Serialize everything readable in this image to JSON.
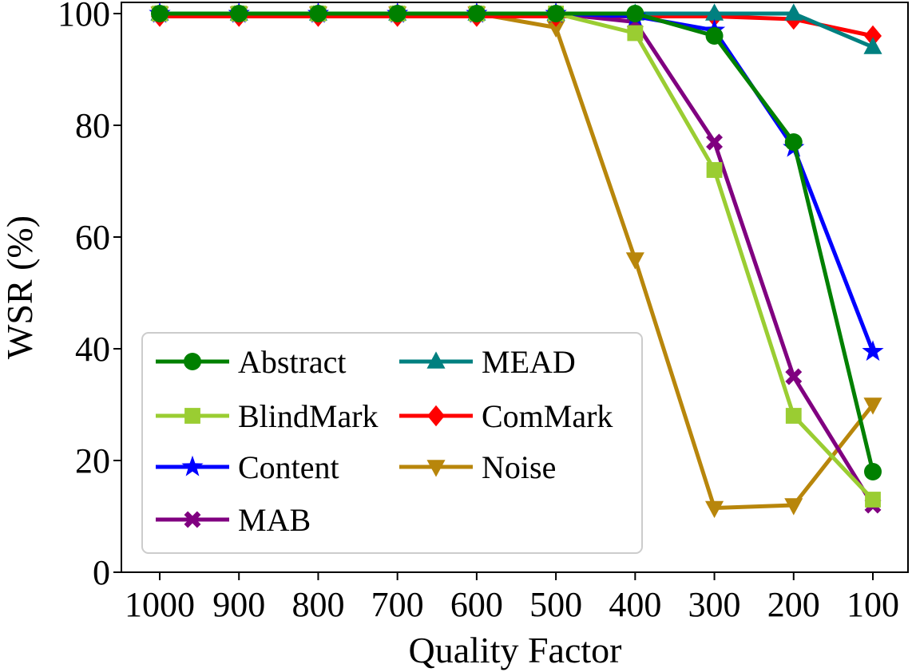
{
  "chart_data": {
    "type": "line",
    "title": "",
    "xlabel": "Quality Factor",
    "ylabel": "WSR (%)",
    "categories": [
      "1000",
      "900",
      "800",
      "700",
      "600",
      "500",
      "400",
      "300",
      "200",
      "100"
    ],
    "yticks": [
      "0",
      "20",
      "40",
      "60",
      "80",
      "100"
    ],
    "ylim": [
      0,
      102
    ],
    "grid": false,
    "legend_position": "lower-left",
    "series": [
      {
        "name": "Abstract",
        "color": "#008000",
        "marker": "circle",
        "values": [
          100,
          100,
          100,
          100,
          100,
          100,
          100,
          96,
          77,
          18
        ]
      },
      {
        "name": "BlindMark",
        "color": "#9acd32",
        "marker": "square",
        "values": [
          100,
          100,
          100,
          100,
          100,
          100,
          96.5,
          72,
          28,
          13
        ]
      },
      {
        "name": "Content",
        "color": "#0000ff",
        "marker": "star",
        "values": [
          100,
          100,
          100,
          100,
          100,
          100,
          99.5,
          97,
          76,
          39.5
        ]
      },
      {
        "name": "MAB",
        "color": "#800080",
        "marker": "x",
        "values": [
          100,
          100,
          100,
          100,
          100,
          100,
          98.5,
          77,
          35,
          12
        ]
      },
      {
        "name": "MEAD",
        "color": "#008080",
        "marker": "triangle-up",
        "values": [
          100,
          100,
          100,
          100,
          100,
          100,
          100,
          100,
          100,
          94
        ]
      },
      {
        "name": "ComMark",
        "color": "#ff0000",
        "marker": "diamond",
        "values": [
          99.5,
          99.5,
          99.5,
          99.5,
          99.5,
          99.5,
          99.5,
          99.5,
          99,
          96
        ]
      },
      {
        "name": "Noise",
        "color": "#b8860b",
        "marker": "triangle-down",
        "values": [
          100,
          100,
          100,
          100,
          100,
          97.5,
          56,
          11.5,
          12,
          30
        ]
      }
    ]
  }
}
